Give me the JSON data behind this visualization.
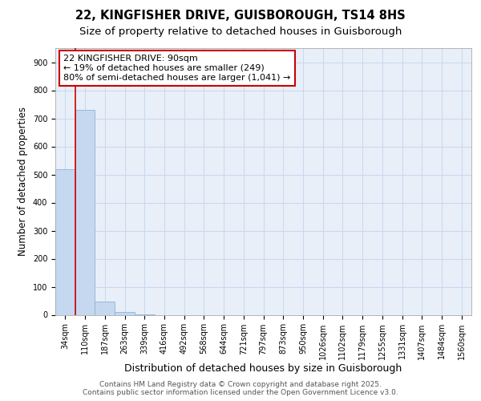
{
  "title": "22, KINGFISHER DRIVE, GUISBOROUGH, TS14 8HS",
  "subtitle": "Size of property relative to detached houses in Guisborough",
  "xlabel": "Distribution of detached houses by size in Guisborough",
  "ylabel": "Number of detached properties",
  "bar_labels": [
    "34sqm",
    "110sqm",
    "187sqm",
    "263sqm",
    "339sqm",
    "416sqm",
    "492sqm",
    "568sqm",
    "644sqm",
    "721sqm",
    "797sqm",
    "873sqm",
    "950sqm",
    "1026sqm",
    "1102sqm",
    "1179sqm",
    "1255sqm",
    "1331sqm",
    "1407sqm",
    "1484sqm",
    "1560sqm"
  ],
  "bar_values": [
    520,
    730,
    48,
    10,
    2,
    0,
    0,
    0,
    0,
    0,
    0,
    0,
    0,
    0,
    0,
    0,
    0,
    0,
    0,
    0,
    0
  ],
  "bar_color": "#c5d8f0",
  "bar_edge_color": "#8ab4d8",
  "annotation_text": "22 KINGFISHER DRIVE: 90sqm\n← 19% of detached houses are smaller (249)\n80% of semi-detached houses are larger (1,041) →",
  "annotation_box_color": "#ffffff",
  "annotation_border_color": "#cc0000",
  "property_line_x": 0.5,
  "property_line_color": "#cc0000",
  "ylim": [
    0,
    950
  ],
  "yticks": [
    0,
    100,
    200,
    300,
    400,
    500,
    600,
    700,
    800,
    900
  ],
  "background_color": "#e8eff8",
  "grid_color": "#c8d8ee",
  "footer_text": "Contains HM Land Registry data © Crown copyright and database right 2025.\nContains public sector information licensed under the Open Government Licence v3.0.",
  "title_fontsize": 10.5,
  "subtitle_fontsize": 9.5,
  "xlabel_fontsize": 9,
  "ylabel_fontsize": 8.5,
  "tick_fontsize": 7,
  "annotation_fontsize": 8,
  "footer_fontsize": 6.5
}
